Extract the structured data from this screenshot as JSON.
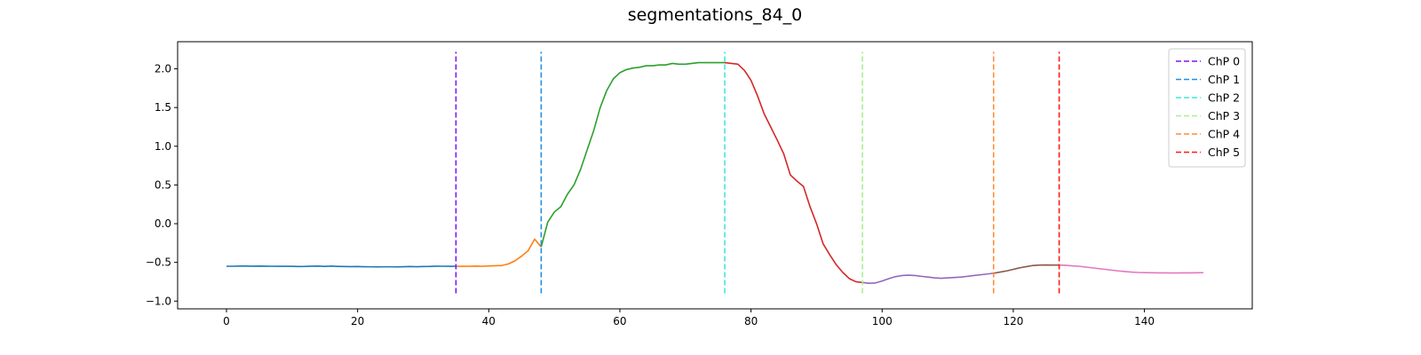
{
  "chart_data": {
    "type": "line",
    "title": "segmentations_84_0",
    "xlabel": "",
    "ylabel": "",
    "xlim": [
      -7.45,
      156.45
    ],
    "ylim": [
      -1.1,
      2.35
    ],
    "x_ticks": [
      0,
      20,
      40,
      60,
      80,
      100,
      120,
      140
    ],
    "y_ticks": [
      -1.0,
      -0.5,
      0.0,
      0.5,
      1.0,
      1.5,
      2.0
    ],
    "y_tick_labels": [
      "−1.0",
      "−0.5",
      "0.0",
      "0.5",
      "1.0",
      "1.5",
      "2.0"
    ],
    "grid": false,
    "legend_position": "top-right",
    "series_y": [
      -0.55,
      -0.55,
      -0.548,
      -0.548,
      -0.549,
      -0.548,
      -0.549,
      -0.55,
      -0.551,
      -0.55,
      -0.551,
      -0.553,
      -0.552,
      -0.549,
      -0.548,
      -0.552,
      -0.548,
      -0.552,
      -0.553,
      -0.555,
      -0.554,
      -0.556,
      -0.557,
      -0.558,
      -0.557,
      -0.557,
      -0.558,
      -0.556,
      -0.554,
      -0.556,
      -0.553,
      -0.552,
      -0.549,
      -0.55,
      -0.551,
      -0.55,
      -0.551,
      -0.55,
      -0.548,
      -0.55,
      -0.546,
      -0.543,
      -0.54,
      -0.52,
      -0.48,
      -0.42,
      -0.35,
      -0.2,
      -0.3,
      0.02,
      0.15,
      0.22,
      0.38,
      0.5,
      0.7,
      0.95,
      1.2,
      1.5,
      1.72,
      1.87,
      1.95,
      1.99,
      2.01,
      2.02,
      2.04,
      2.04,
      2.05,
      2.05,
      2.07,
      2.06,
      2.06,
      2.07,
      2.08,
      2.08,
      2.08,
      2.08,
      2.08,
      2.07,
      2.06,
      1.98,
      1.85,
      1.65,
      1.42,
      1.25,
      1.08,
      0.9,
      0.63,
      0.55,
      0.48,
      0.22,
      0.0,
      -0.26,
      -0.4,
      -0.53,
      -0.63,
      -0.71,
      -0.75,
      -0.76,
      -0.77,
      -0.765,
      -0.74,
      -0.71,
      -0.685,
      -0.67,
      -0.665,
      -0.67,
      -0.68,
      -0.69,
      -0.7,
      -0.705,
      -0.7,
      -0.695,
      -0.69,
      -0.68,
      -0.67,
      -0.66,
      -0.65,
      -0.64,
      -0.625,
      -0.61,
      -0.59,
      -0.57,
      -0.555,
      -0.54,
      -0.535,
      -0.533,
      -0.535,
      -0.535,
      -0.538,
      -0.545,
      -0.55,
      -0.56,
      -0.57,
      -0.58,
      -0.59,
      -0.6,
      -0.61,
      -0.618,
      -0.625,
      -0.63,
      -0.632,
      -0.634,
      -0.635,
      -0.635,
      -0.636,
      -0.636,
      -0.635,
      -0.635,
      -0.634,
      -0.633
    ],
    "segments": [
      {
        "start": 0,
        "end": 35,
        "color": "#1f77b4"
      },
      {
        "start": 35,
        "end": 48,
        "color": "#ff7f0e"
      },
      {
        "start": 48,
        "end": 76,
        "color": "#2ca02c"
      },
      {
        "start": 76,
        "end": 97,
        "color": "#d62728"
      },
      {
        "start": 97,
        "end": 117,
        "color": "#9467bd"
      },
      {
        "start": 117,
        "end": 127,
        "color": "#8c564b"
      },
      {
        "start": 127,
        "end": 149,
        "color": "#e377c2"
      }
    ],
    "change_points": [
      {
        "name": "ChP 0",
        "x": 35,
        "color": "#7b16f2"
      },
      {
        "name": "ChP 1",
        "x": 48,
        "color": "#1e8fe8"
      },
      {
        "name": "ChP 2",
        "x": 76,
        "color": "#3fe9d6"
      },
      {
        "name": "ChP 3",
        "x": 97,
        "color": "#a8f096"
      },
      {
        "name": "ChP 4",
        "x": 117,
        "color": "#ff8c3c"
      },
      {
        "name": "ChP 5",
        "x": 127,
        "color": "#ff1a1a"
      }
    ],
    "vline_range": [
      -0.9,
      2.22
    ]
  }
}
